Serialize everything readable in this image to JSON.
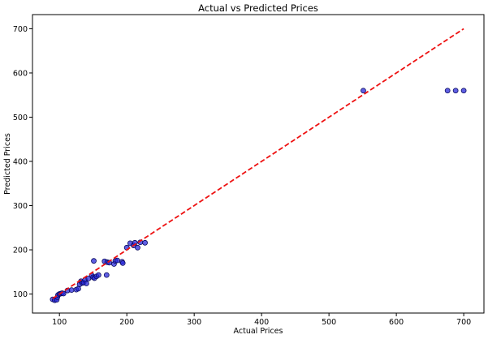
{
  "chart_data": {
    "type": "scatter",
    "title": "Actual vs Predicted Prices",
    "xlabel": "Actual Prices",
    "ylabel": "Predicted Prices",
    "xlim": [
      60,
      730
    ],
    "ylim": [
      57,
      732
    ],
    "xticks": [
      100,
      200,
      300,
      400,
      500,
      600,
      700
    ],
    "yticks": [
      100,
      200,
      300,
      400,
      500,
      600,
      700
    ],
    "grid": false,
    "legend": "none",
    "point_color": "#2a2ad9",
    "point_edge_color": "#0b0b5e",
    "reference_line": {
      "from": [
        90,
        90
      ],
      "to": [
        700,
        700
      ],
      "color": "#ee1111",
      "style": "dashed"
    },
    "points": [
      [
        90,
        88
      ],
      [
        93,
        86
      ],
      [
        96,
        87
      ],
      [
        97,
        93
      ],
      [
        98,
        98
      ],
      [
        100,
        100
      ],
      [
        102,
        101
      ],
      [
        104,
        102
      ],
      [
        106,
        101
      ],
      [
        112,
        108
      ],
      [
        118,
        109
      ],
      [
        125,
        110
      ],
      [
        128,
        112
      ],
      [
        130,
        122
      ],
      [
        132,
        129
      ],
      [
        134,
        125
      ],
      [
        136,
        126
      ],
      [
        138,
        132
      ],
      [
        140,
        124
      ],
      [
        143,
        135
      ],
      [
        148,
        142
      ],
      [
        150,
        138
      ],
      [
        152,
        136
      ],
      [
        155,
        140
      ],
      [
        158,
        143
      ],
      [
        151,
        175
      ],
      [
        167,
        174
      ],
      [
        170,
        143
      ],
      [
        171,
        172
      ],
      [
        174,
        171
      ],
      [
        181,
        168
      ],
      [
        183,
        175
      ],
      [
        186,
        176
      ],
      [
        193,
        173
      ],
      [
        194,
        170
      ],
      [
        200,
        205
      ],
      [
        205,
        215
      ],
      [
        210,
        210
      ],
      [
        212,
        216
      ],
      [
        216,
        205
      ],
      [
        220,
        217
      ],
      [
        227,
        216
      ],
      [
        551,
        560
      ],
      [
        676,
        560
      ],
      [
        688,
        560
      ],
      [
        700,
        560
      ]
    ]
  }
}
